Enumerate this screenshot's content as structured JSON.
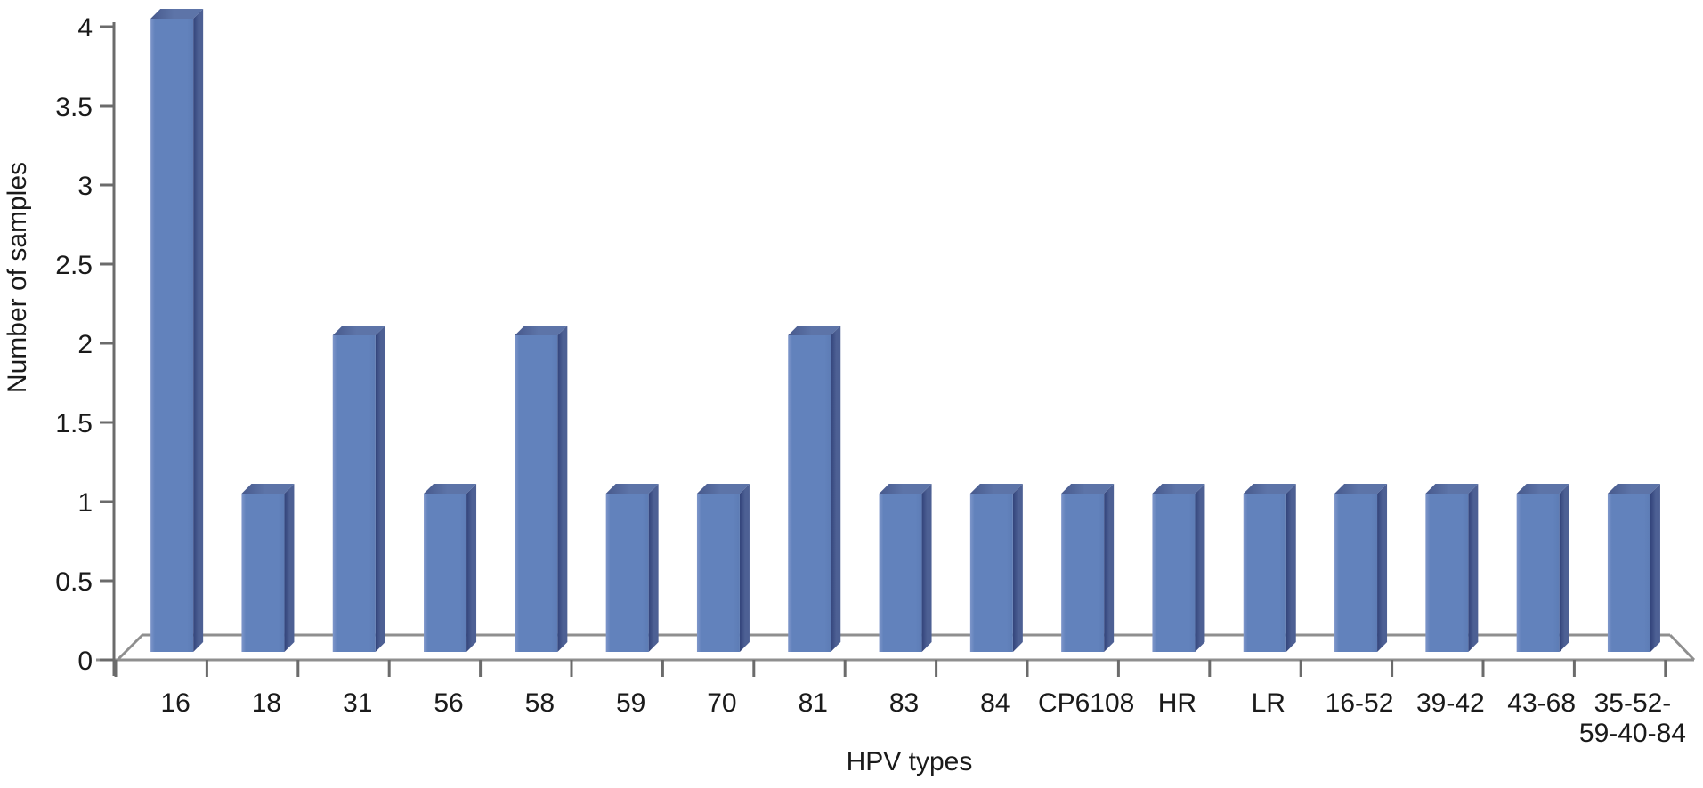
{
  "chart_data": {
    "type": "bar",
    "style": "3d-column",
    "title": "",
    "xlabel": "HPV types",
    "ylabel": "Number of samples",
    "categories": [
      "16",
      "18",
      "31",
      "56",
      "58",
      "59",
      "70",
      "81",
      "83",
      "84",
      "CP6108",
      "HR",
      "LR",
      "16-52",
      "39-42",
      "43-68",
      "35-52-\n59-40-84"
    ],
    "values": [
      4,
      1,
      2,
      1,
      2,
      1,
      1,
      2,
      1,
      1,
      1,
      1,
      1,
      1,
      1,
      1,
      1
    ],
    "yticks": [
      0,
      0.5,
      1,
      1.5,
      2,
      2.5,
      3,
      3.5,
      4
    ],
    "ylim": [
      0,
      4
    ],
    "grid": false,
    "legend_position": "none",
    "colors": {
      "bar_front": "#6282bc",
      "bar_front_highlight": "#7e96ca",
      "bar_front_shade": "#5d7cb5",
      "bar_side_dark": "#32437a",
      "bar_side_light": "#4d6094",
      "bar_top_dark": "#47598c",
      "bar_top_light": "#5d74a8",
      "axis_line": "#6b6b6b",
      "floor_line": "#8f8f8f",
      "text": "#1a1a1a"
    }
  }
}
